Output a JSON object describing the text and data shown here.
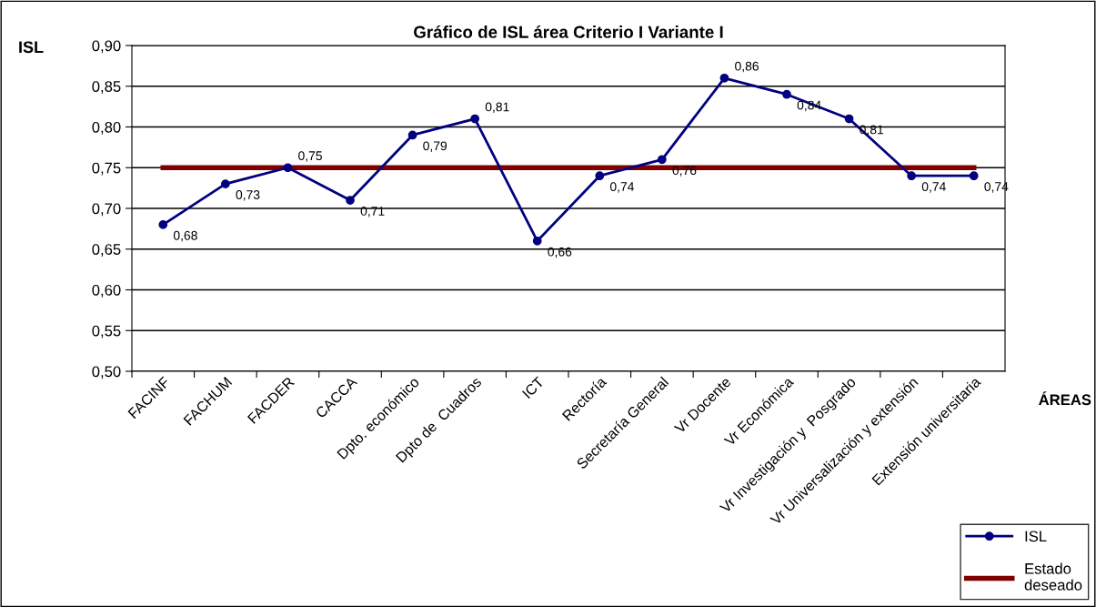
{
  "chart_data": {
    "type": "line",
    "title": "Gráfico de ISL área Criterio I Variante I",
    "ylabel": "ISL",
    "xlabel": "ÁREAS",
    "categories": [
      "FACINF",
      "FACHUM",
      "FACDER",
      "CACCA",
      "Dpto. económico",
      "Dpto de  Cuadros",
      "ICT",
      "Rectoría",
      "Secretaría General",
      "Vr Docente",
      "Vr Económica",
      "Vr Investigación y  Posgrado",
      "Vr Universalización y extensión",
      "Extensión universitaria"
    ],
    "series": [
      {
        "name": "ISL",
        "color": "#000080",
        "marker": "circle",
        "values": [
          0.68,
          0.73,
          0.75,
          0.71,
          0.79,
          0.81,
          0.66,
          0.74,
          0.76,
          0.86,
          0.84,
          0.81,
          0.74,
          0.74
        ],
        "value_labels": [
          "0,68",
          "0,73",
          "0,75",
          "0,71",
          "0,79",
          "0,81",
          "0,66",
          "0,74",
          "0,76",
          "0,86",
          "0,84",
          "0,81",
          "0,74",
          "0,74"
        ]
      },
      {
        "name": "Estado deseado",
        "color": "#800000",
        "marker": "none",
        "values": [
          0.75,
          0.75,
          0.75,
          0.75,
          0.75,
          0.75,
          0.75,
          0.75,
          0.75,
          0.75,
          0.75,
          0.75,
          0.75,
          0.75
        ]
      }
    ],
    "ylim": [
      0.5,
      0.9
    ],
    "yticks": [
      {
        "value": 0.5,
        "label": "0,50"
      },
      {
        "value": 0.55,
        "label": "0,55"
      },
      {
        "value": 0.6,
        "label": "0,60"
      },
      {
        "value": 0.65,
        "label": "0,65"
      },
      {
        "value": 0.7,
        "label": "0,70"
      },
      {
        "value": 0.75,
        "label": "0,75"
      },
      {
        "value": 0.8,
        "label": "0,80"
      },
      {
        "value": 0.85,
        "label": "0,85"
      },
      {
        "value": 0.9,
        "label": "0,90"
      }
    ],
    "grid": "y",
    "legend": "bottom right"
  }
}
